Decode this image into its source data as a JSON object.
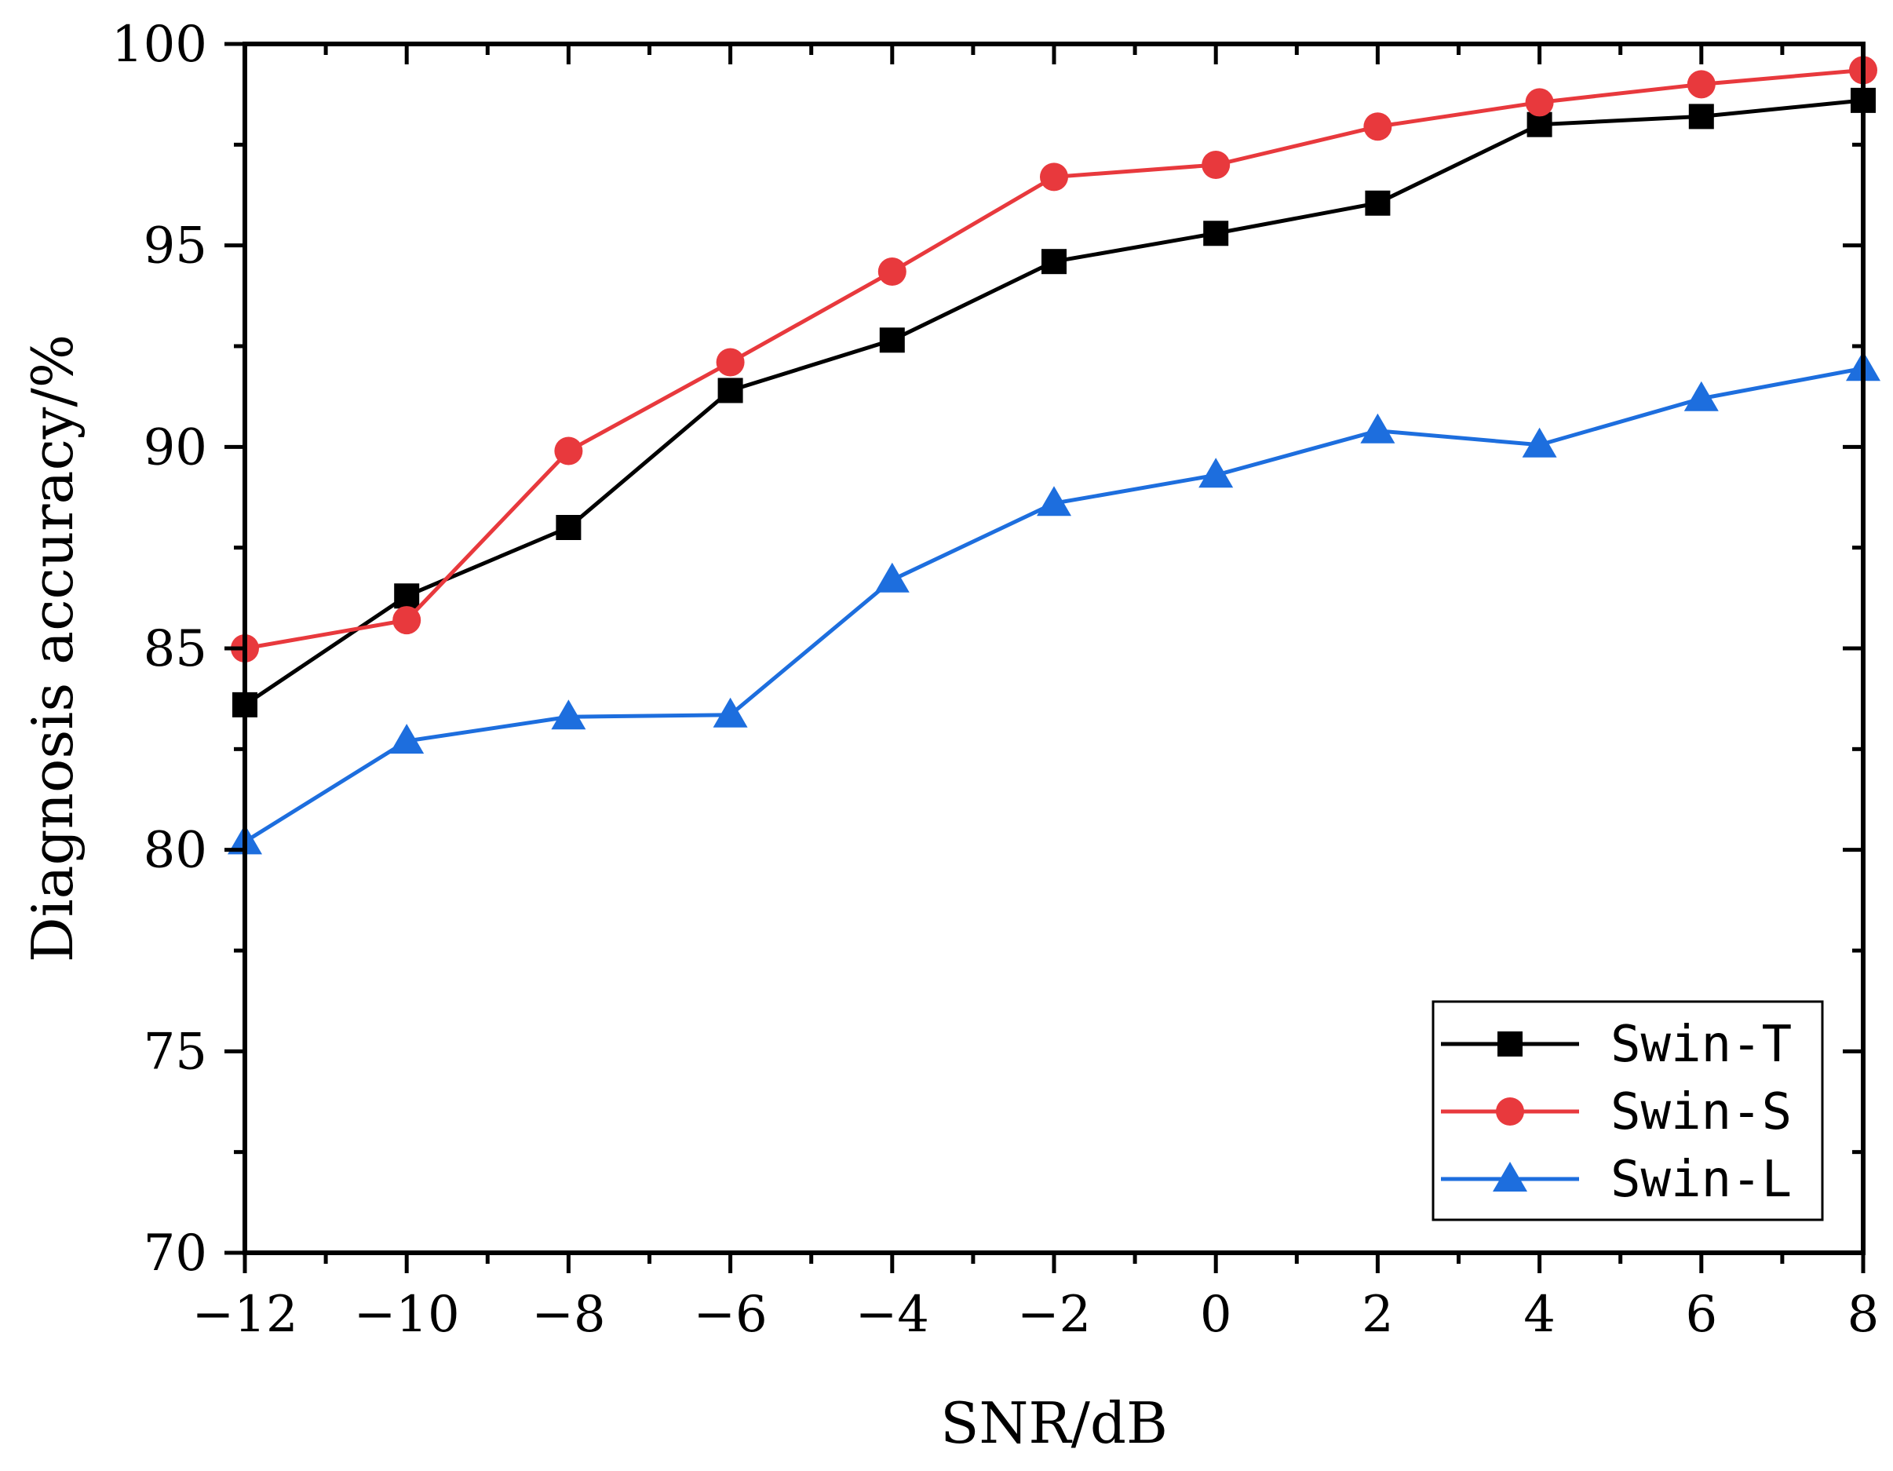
{
  "chart_data": {
    "type": "line",
    "title": "",
    "xlabel": "SNR/dB",
    "ylabel": "Diagnosis accuracy/%",
    "x": [
      -12,
      -10,
      -8,
      -6,
      -4,
      -2,
      0,
      2,
      4,
      6,
      8
    ],
    "x_tick_labels": [
      "−12",
      "−10",
      "−8",
      "−6",
      "−4",
      "−2",
      "0",
      "2",
      "4",
      "6",
      "8"
    ],
    "y_ticks": [
      70,
      75,
      80,
      85,
      90,
      95,
      100
    ],
    "xlim": [
      -12,
      8
    ],
    "ylim": [
      70,
      100
    ],
    "grid": false,
    "legend_position": "bottom-right",
    "series": [
      {
        "name": "Swin-T",
        "color": "#000000",
        "marker": "square",
        "values": [
          83.6,
          86.3,
          88.0,
          91.4,
          92.65,
          94.6,
          95.3,
          96.05,
          98.0,
          98.2,
          98.6
        ]
      },
      {
        "name": "Swin-S",
        "color": "#e8393d",
        "marker": "circle",
        "values": [
          85.0,
          85.7,
          89.9,
          92.1,
          94.35,
          96.7,
          97.0,
          97.95,
          98.55,
          99.0,
          99.35
        ]
      },
      {
        "name": "Swin-L",
        "color": "#1d6ede",
        "marker": "triangle",
        "values": [
          80.2,
          82.7,
          83.3,
          83.35,
          86.7,
          88.6,
          89.3,
          90.4,
          90.05,
          91.2,
          91.95
        ]
      }
    ]
  }
}
